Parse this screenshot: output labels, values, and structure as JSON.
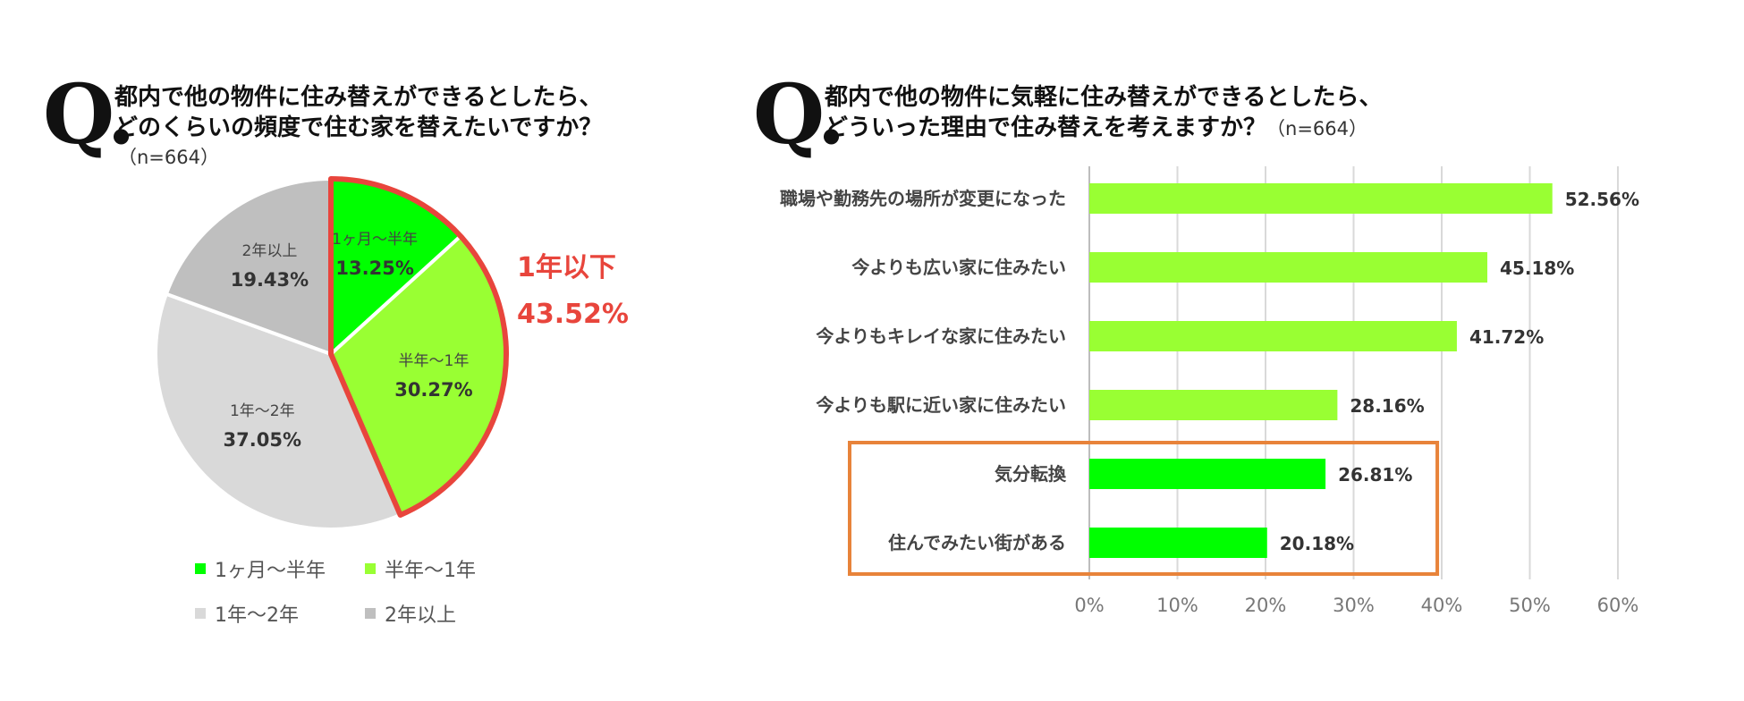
{
  "left": {
    "q_mark": "Q.",
    "question_line1": "都内で他の物件に住み替えができるとしたら、",
    "question_line2": "どのくらいの頻度で住む家を替えたいですか？",
    "sample": "（n=664）",
    "callout_label": "1年以下",
    "callout_value": "43.52%",
    "callout_color": "#e8453c"
  },
  "right": {
    "q_mark": "Q.",
    "question_line1": "都内で他の物件に気軽に住み替えができるとしたら、",
    "question_line2": "どういった理由で住み替えを考えますか？",
    "sample": "（n=664）",
    "highlight_color": "#e8833a"
  },
  "chart_data": [
    {
      "type": "pie",
      "slices": [
        {
          "label": "1ヶ月～半年",
          "value": 13.25,
          "value_label": "13.25%",
          "color": "#00ff00"
        },
        {
          "label": "半年～1年",
          "value": 30.27,
          "value_label": "30.27%",
          "color": "#99ff33"
        },
        {
          "label": "1年～2年",
          "value": 37.05,
          "value_label": "37.05%",
          "color": "#d9d9d9"
        },
        {
          "label": "2年以上",
          "value": 19.43,
          "value_label": "19.43%",
          "color": "#bfbfbf"
        }
      ],
      "legend": [
        "1ヶ月～半年",
        "半年～1年",
        "1年～2年",
        "2年以上"
      ],
      "legend_placement": "bottom"
    },
    {
      "type": "bar",
      "orientation": "horizontal",
      "categories": [
        "職場や勤務先の場所が変更になった",
        "今よりも広い家に住みたい",
        "今よりもキレイな家に住みたい",
        "今よりも駅に近い家に住みたい",
        "気分転換",
        "住んでみたい街がある"
      ],
      "values": [
        52.56,
        45.18,
        41.72,
        28.16,
        26.81,
        20.18
      ],
      "value_labels": [
        "52.56%",
        "45.18%",
        "41.72%",
        "28.16%",
        "26.81%",
        "20.18%"
      ],
      "bar_colors": [
        "#99ff33",
        "#99ff33",
        "#99ff33",
        "#99ff33",
        "#00ff00",
        "#00ff00"
      ],
      "xlim": [
        0,
        60
      ],
      "x_ticks": [
        "0%",
        "10%",
        "20%",
        "30%",
        "40%",
        "50%",
        "60%"
      ],
      "grid": true,
      "highlighted_categories": [
        "気分転換",
        "住んでみたい街がある"
      ]
    }
  ]
}
